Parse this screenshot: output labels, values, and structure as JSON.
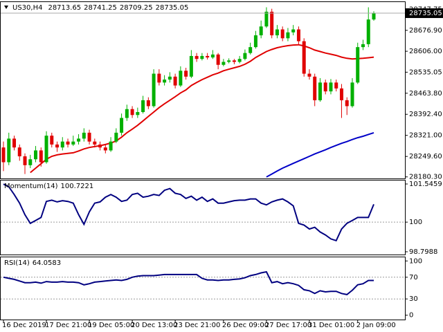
{
  "chart_data": [
    {
      "type": "candlestick",
      "title": "US30,H4",
      "categories": [
        "16 Dec 2019",
        null,
        null,
        null,
        null,
        null,
        null,
        null,
        "17 Dec 21:00",
        null,
        null,
        null,
        null,
        null,
        null,
        null,
        "19 Dec 05:00",
        null,
        null,
        null,
        null,
        null,
        null,
        null,
        "20 Dec 13:00",
        null,
        null,
        null,
        null,
        null,
        null,
        null,
        "23 Dec 21:00",
        null,
        null,
        null,
        null,
        null,
        null,
        null,
        null,
        "26 Dec 09:00",
        null,
        null,
        null,
        null,
        null,
        null,
        null,
        "27 Dec 17:00",
        null,
        null,
        null,
        null,
        null,
        null,
        null,
        "31 Dec 01:00",
        null,
        null,
        null,
        null,
        null,
        null,
        null,
        null,
        "2 Jan 09:00",
        null,
        null,
        null
      ],
      "candles": [
        [
          28280,
          28300,
          28200,
          28230
        ],
        [
          28230,
          28330,
          28220,
          28310
        ],
        [
          28310,
          28320,
          28270,
          28280
        ],
        [
          28280,
          28290,
          28235,
          28250
        ],
        [
          28250,
          28260,
          28190,
          28220
        ],
        [
          28220,
          28255,
          28210,
          28240
        ],
        [
          28240,
          28285,
          28230,
          28270
        ],
        [
          28270,
          28280,
          28215,
          28230
        ],
        [
          28230,
          28335,
          28225,
          28320
        ],
        [
          28320,
          28330,
          28280,
          28290
        ],
        [
          28290,
          28300,
          28265,
          28280
        ],
        [
          28280,
          28315,
          28270,
          28300
        ],
        [
          28300,
          28310,
          28280,
          28290
        ],
        [
          28290,
          28320,
          28285,
          28300
        ],
        [
          28300,
          28325,
          28290,
          28310
        ],
        [
          28310,
          28345,
          28300,
          28330
        ],
        [
          28330,
          28340,
          28290,
          28300
        ],
        [
          28300,
          28310,
          28280,
          28290
        ],
        [
          28290,
          28300,
          28270,
          28280
        ],
        [
          28280,
          28290,
          28260,
          28270
        ],
        [
          28270,
          28315,
          28265,
          28300
        ],
        [
          28300,
          28345,
          28295,
          28330
        ],
        [
          28330,
          28395,
          28320,
          28380
        ],
        [
          28380,
          28425,
          28370,
          28410
        ],
        [
          28410,
          28420,
          28380,
          28390
        ],
        [
          28390,
          28415,
          28380,
          28400
        ],
        [
          28400,
          28455,
          28395,
          28440
        ],
        [
          28440,
          28450,
          28410,
          28420
        ],
        [
          28420,
          28545,
          28415,
          28530
        ],
        [
          28530,
          28545,
          28490,
          28500
        ],
        [
          28500,
          28525,
          28490,
          28510
        ],
        [
          28510,
          28535,
          28500,
          28520
        ],
        [
          28520,
          28530,
          28480,
          28490
        ],
        [
          28490,
          28555,
          28485,
          28540
        ],
        [
          28540,
          28550,
          28510,
          28520
        ],
        [
          28520,
          28610,
          28515,
          28590
        ],
        [
          28590,
          28600,
          28570,
          28580
        ],
        [
          28580,
          28600,
          28575,
          28590
        ],
        [
          28590,
          28600,
          28578,
          28585
        ],
        [
          28585,
          28610,
          28580,
          28595
        ],
        [
          28595,
          28600,
          28545,
          28560
        ],
        [
          28560,
          28580,
          28555,
          28570
        ],
        [
          28570,
          28582,
          28565,
          28575
        ],
        [
          28575,
          28580,
          28562,
          28570
        ],
        [
          28570,
          28590,
          28565,
          28580
        ],
        [
          28580,
          28612,
          28575,
          28600
        ],
        [
          28600,
          28635,
          28595,
          28620
        ],
        [
          28620,
          28675,
          28615,
          28660
        ],
        [
          28660,
          28710,
          28650,
          28690
        ],
        [
          28690,
          28755,
          28685,
          28740
        ],
        [
          28740,
          28750,
          28650,
          28660
        ],
        [
          28660,
          28695,
          28650,
          28680
        ],
        [
          28680,
          28690,
          28640,
          28650
        ],
        [
          28650,
          28685,
          28640,
          28670
        ],
        [
          28670,
          28695,
          28660,
          28680
        ],
        [
          28680,
          28690,
          28630,
          28640
        ],
        [
          28640,
          28650,
          28520,
          28530
        ],
        [
          28530,
          28545,
          28510,
          28520
        ],
        [
          28520,
          28530,
          28420,
          28440
        ],
        [
          28440,
          28515,
          28435,
          28500
        ],
        [
          28500,
          28510,
          28460,
          28470
        ],
        [
          28470,
          28512,
          28460,
          28500
        ],
        [
          28500,
          28510,
          28470,
          28480
        ],
        [
          28480,
          28495,
          28380,
          28440
        ],
        [
          28440,
          28450,
          28390,
          28420
        ],
        [
          28420,
          28515,
          28415,
          28500
        ],
        [
          28500,
          28635,
          28495,
          28620
        ],
        [
          28620,
          28645,
          28610,
          28630
        ],
        [
          28630,
          28755,
          28620,
          28713.65
        ],
        [
          28713.65,
          28741.25,
          28709.25,
          28735.05
        ]
      ],
      "up_color": "#00b000",
      "down_color": "#e00000",
      "series": [
        {
          "color": "#e00000",
          "values": [
            null,
            null,
            null,
            null,
            null,
            28195,
            28210,
            28225,
            28240,
            28250,
            28255,
            28258,
            28260,
            28262,
            28268,
            28275,
            28280,
            28283,
            28286,
            28290,
            28295,
            28302,
            28315,
            28330,
            28342,
            28355,
            28370,
            28385,
            28400,
            28415,
            28428,
            28440,
            28452,
            28465,
            28475,
            28490,
            28500,
            28510,
            28518,
            28526,
            28532,
            28540,
            28545,
            28550,
            28555,
            28562,
            28572,
            28585,
            28595,
            28605,
            28612,
            28618,
            28622,
            28625,
            28627,
            28628,
            28624,
            28618,
            28610,
            28605,
            28600,
            28596,
            28592,
            28586,
            28582,
            28580,
            28581,
            28582,
            28584,
            28586
          ]
        },
        {
          "color": "#0000c8",
          "values": [
            null,
            null,
            null,
            null,
            null,
            null,
            null,
            null,
            null,
            null,
            null,
            null,
            null,
            null,
            null,
            null,
            null,
            null,
            null,
            null,
            null,
            null,
            null,
            null,
            null,
            null,
            null,
            null,
            null,
            null,
            null,
            null,
            null,
            null,
            null,
            null,
            null,
            null,
            null,
            null,
            null,
            null,
            null,
            null,
            null,
            null,
            null,
            null,
            null,
            28180,
            28190,
            28200,
            28210,
            28218,
            28226,
            28234,
            28242,
            28250,
            28258,
            28265,
            28272,
            28280,
            28287,
            28294,
            28300,
            28307,
            28313,
            28318,
            28324,
            28330
          ]
        }
      ],
      "ylim": [
        28175,
        28775
      ],
      "yticks": [
        {
          "value": 28180.3,
          "label": "28180.30"
        },
        {
          "value": 28249.6,
          "label": "28249.60"
        },
        {
          "value": 28321,
          "label": "28321.00"
        },
        {
          "value": 28392.4,
          "label": "28392.40"
        },
        {
          "value": 28463.8,
          "label": "28463.80"
        },
        {
          "value": 28535.05,
          "label": "28535.05"
        },
        {
          "value": 28606,
          "label": "28606.00"
        },
        {
          "value": 28676.9,
          "label": "28676.90"
        },
        {
          "value": 28747.75,
          "label": "28747.75"
        }
      ]
    },
    {
      "type": "line",
      "title": "Momentum(14)",
      "color": "#000080",
      "values": [
        101.54,
        101.43,
        101.12,
        100.77,
        100.3,
        99.95,
        100.07,
        100.19,
        100.84,
        100.89,
        100.82,
        100.87,
        100.84,
        100.77,
        100.3,
        99.91,
        100.42,
        100.77,
        100.82,
        101.01,
        101.12,
        101.01,
        100.84,
        100.89,
        101.12,
        101.17,
        101.01,
        101.05,
        101.12,
        101.08,
        101.29,
        101.36,
        101.17,
        101.12,
        100.96,
        101.05,
        100.89,
        101.01,
        100.84,
        100.94,
        100.77,
        100.77,
        100.82,
        100.87,
        100.89,
        100.89,
        100.94,
        100.94,
        100.77,
        100.7,
        100.82,
        100.89,
        100.94,
        100.82,
        100.66,
        99.95,
        99.88,
        99.72,
        99.79,
        99.6,
        99.48,
        99.32,
        99.25,
        99.72,
        99.95,
        100.07,
        100.19,
        100.19,
        100.19,
        100.7221
      ],
      "ylim": [
        98.7988,
        101.5459
      ],
      "yticks": [
        98.7988,
        100,
        101.5459
      ],
      "levels": [
        100
      ]
    },
    {
      "type": "line",
      "title": "RSI(14)",
      "color": "#000080",
      "values": [
        70,
        68,
        66,
        63,
        60,
        60,
        61,
        59,
        62,
        61,
        61,
        62,
        61,
        61,
        60,
        56,
        58,
        61,
        62,
        63,
        64,
        65,
        64,
        66,
        70,
        72,
        73,
        73,
        73,
        74,
        75,
        75,
        75,
        75,
        75,
        75,
        75,
        68,
        65,
        65,
        64,
        65,
        65,
        66,
        67,
        69,
        73,
        75,
        78,
        80,
        60,
        62,
        58,
        60,
        58,
        55,
        47,
        45,
        40,
        45,
        43,
        44,
        44,
        40,
        38,
        46,
        56,
        58,
        64,
        64.0583
      ],
      "ylim": [
        -8,
        108
      ],
      "yticks": [
        0,
        30,
        70,
        100
      ],
      "levels": [
        30,
        70
      ]
    }
  ]
}
